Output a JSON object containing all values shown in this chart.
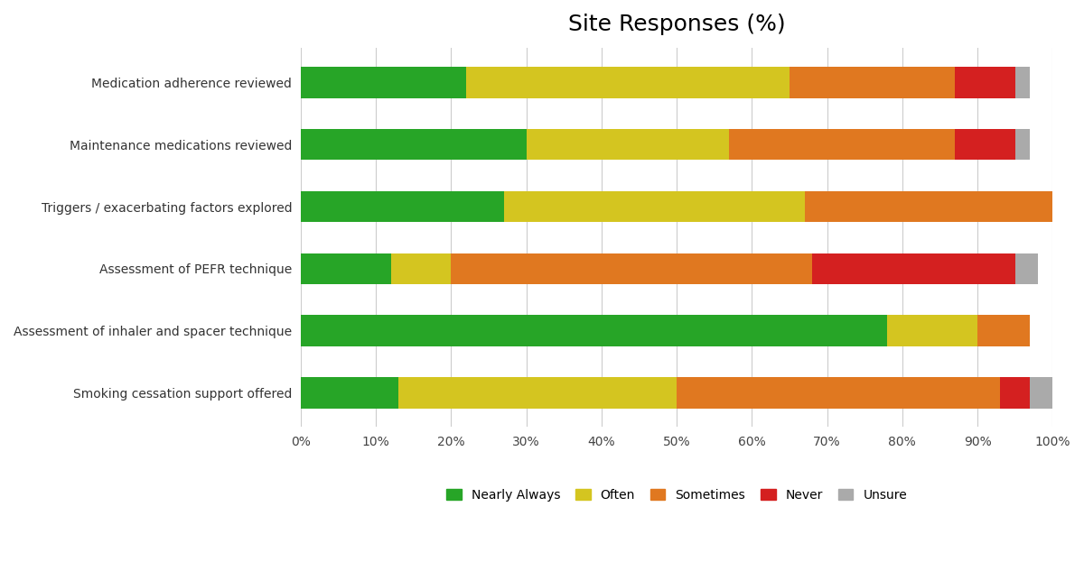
{
  "title": "Site Responses (%)",
  "categories": [
    "Medication adherence reviewed",
    "Maintenance medications reviewed",
    "Triggers / exacerbating factors explored",
    "Assessment of PEFR technique",
    "Assessment of inhaler and spacer technique",
    "Smoking cessation support offered"
  ],
  "series": {
    "Nearly Always": [
      22,
      30,
      27,
      12,
      78,
      13
    ],
    "Often": [
      43,
      27,
      40,
      8,
      12,
      37
    ],
    "Sometimes": [
      22,
      30,
      33,
      48,
      7,
      43
    ],
    "Never": [
      8,
      8,
      0,
      27,
      0,
      4
    ],
    "Unsure": [
      2,
      2,
      0,
      3,
      0,
      3
    ]
  },
  "colors": {
    "Nearly Always": "#27a527",
    "Often": "#d4c520",
    "Sometimes": "#e07820",
    "Never": "#d42020",
    "Unsure": "#aaaaaa"
  },
  "legend_order": [
    "Nearly Always",
    "Often",
    "Sometimes",
    "Never",
    "Unsure"
  ],
  "figsize": [
    12.0,
    6.23
  ],
  "dpi": 100,
  "background_color": "#ffffff",
  "title_fontsize": 18,
  "tick_fontsize": 10,
  "bar_height": 0.5
}
